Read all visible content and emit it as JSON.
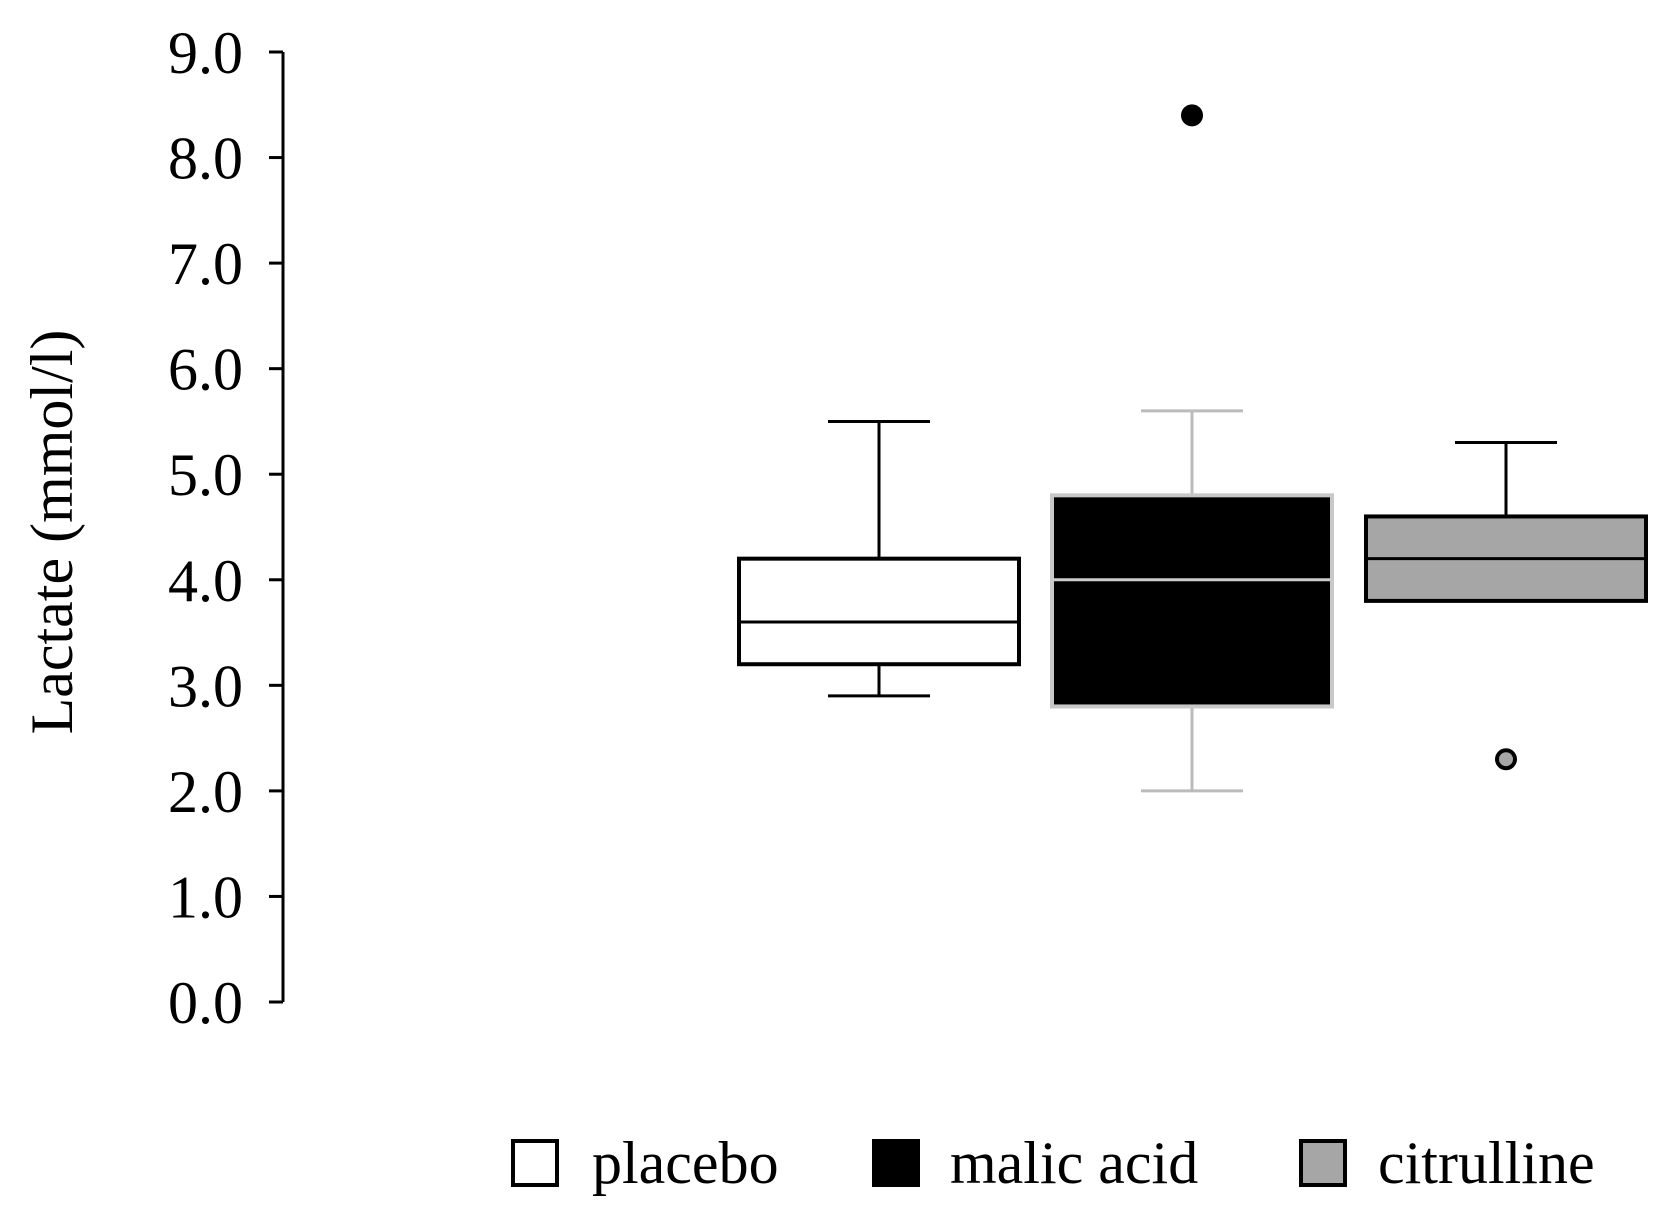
{
  "chart_data": {
    "type": "box",
    "ylabel": "Lactate (mmol/l)",
    "ylim": [
      0.0,
      9.0
    ],
    "yticks": [
      "0.0",
      "1.0",
      "2.0",
      "3.0",
      "4.0",
      "5.0",
      "6.0",
      "7.0",
      "8.0",
      "9.0"
    ],
    "grid": false,
    "legend_position": "bottom-right",
    "series": [
      {
        "name": "placebo",
        "fill": "#ffffff",
        "stroke": "#000000",
        "median_color": "#000000",
        "whisker_color": "#000000",
        "outlier_color": "#000000",
        "whisker_low": 2.9,
        "q1": 3.2,
        "median": 3.6,
        "q3": 4.2,
        "whisker_high": 5.5,
        "outliers": []
      },
      {
        "name": "malic acid",
        "fill": "#000000",
        "stroke": "#c8c8c8",
        "median_color": "#cccccc",
        "whisker_color": "#bbbbbb",
        "outlier_color": "#000000",
        "whisker_low": 2.0,
        "q1": 2.8,
        "median": 4.0,
        "q3": 4.8,
        "whisker_high": 5.6,
        "outliers": [
          8.4
        ]
      },
      {
        "name": "citrulline",
        "fill": "#a6a6a6",
        "stroke": "#000000",
        "median_color": "#000000",
        "whisker_color": "#000000",
        "outlier_color": "#a6a6a6",
        "whisker_low": 3.8,
        "q1": 3.8,
        "median": 4.2,
        "q3": 4.6,
        "whisker_high": 5.3,
        "outliers": [
          2.3
        ]
      }
    ]
  }
}
